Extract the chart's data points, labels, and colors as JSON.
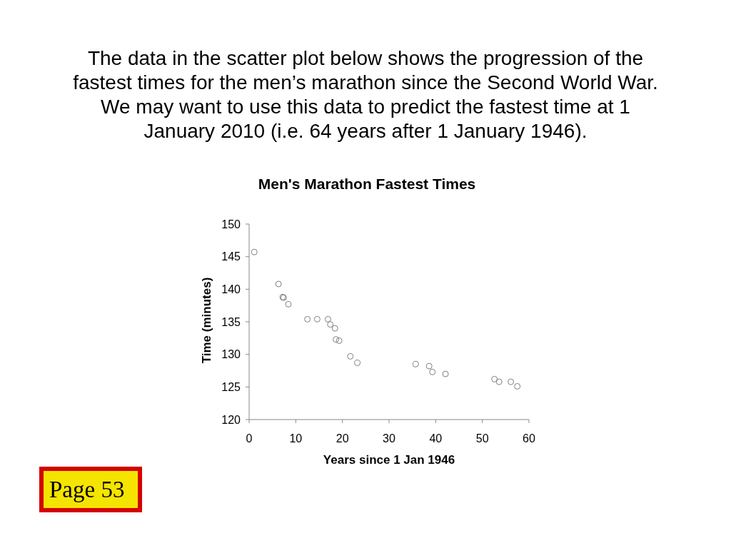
{
  "chart_data": {
    "type": "scatter",
    "title": "Men's Marathon Fastest Times",
    "xlabel": "Years since 1 Jan 1946",
    "ylabel": "Time (minutes)",
    "annotations": [
      "The data in the scatter plot below shows the progression of the\nfastest times for the men’s marathon since the Second World War.\nWe may want to use this data to predict the fastest time at 1\nJanuary 2010 (i.e. 64 years after 1 January 1946).",
      "Page 53"
    ],
    "x": [
      1.1,
      6.3,
      7.2,
      7.4,
      8.4,
      12.5,
      14.6,
      16.9,
      17.4,
      18.4,
      18.6,
      19.3,
      21.7,
      23.2,
      35.7,
      38.6,
      39.3,
      42.1,
      52.6,
      53.6,
      56.1,
      57.5
    ],
    "values": [
      145.7,
      140.8,
      138.8,
      138.7,
      137.7,
      135.4,
      135.4,
      135.4,
      134.6,
      134.0,
      132.3,
      132.1,
      129.7,
      128.7,
      128.5,
      128.2,
      127.3,
      127.0,
      126.2,
      125.8,
      125.8,
      125.1
    ],
    "color": "#7f7f7f",
    "marker": "circle",
    "xlim": [
      0,
      60
    ],
    "xticks": [
      0,
      10,
      20,
      30,
      40,
      50,
      60
    ],
    "ylim": [
      120,
      150
    ],
    "yticks": [
      120,
      125,
      130,
      135,
      140,
      145,
      150
    ]
  }
}
